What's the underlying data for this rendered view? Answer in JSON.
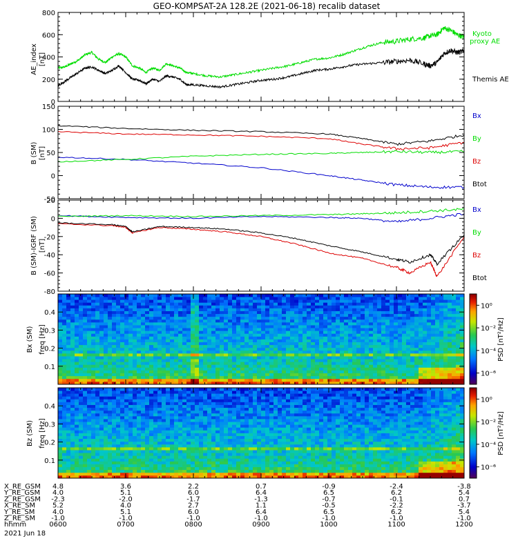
{
  "title": "GEO-KOMPSAT-2A 128.2E (2021-06-18) recalib dataset",
  "colors": {
    "blue": "#0000cc",
    "green": "#00dd00",
    "red": "#dd0000",
    "black": "#000000"
  },
  "chart_data": [
    {
      "id": "ae",
      "type": "line",
      "ylabel": "AE_index",
      "yunit": "[nT]",
      "ylim": [
        0,
        800
      ],
      "yticks": [
        0,
        200,
        400,
        600,
        800
      ],
      "series": [
        {
          "name": "Kyoto proxy AE",
          "label_line1": "Kyoto",
          "label_line2": "proxy AE",
          "color": "#00dd00",
          "t": [
            6.0,
            6.1,
            6.2,
            6.3,
            6.4,
            6.5,
            6.6,
            6.7,
            6.8,
            6.9,
            7.0,
            7.1,
            7.2,
            7.3,
            7.4,
            7.5,
            7.6,
            7.7,
            7.8,
            7.9,
            8.0,
            8.2,
            8.4,
            8.6,
            8.8,
            9.0,
            9.2,
            9.4,
            9.6,
            9.8,
            10.0,
            10.2,
            10.4,
            10.6,
            10.8,
            11.0,
            11.2,
            11.4,
            11.5,
            11.6,
            11.7,
            11.8,
            11.9,
            12.0
          ],
          "v": [
            300,
            310,
            340,
            370,
            420,
            440,
            380,
            350,
            400,
            430,
            400,
            320,
            300,
            260,
            300,
            280,
            340,
            320,
            300,
            260,
            250,
            230,
            220,
            240,
            260,
            280,
            300,
            320,
            350,
            380,
            390,
            420,
            460,
            500,
            530,
            540,
            560,
            570,
            590,
            600,
            660,
            640,
            600,
            580
          ]
        },
        {
          "name": "Themis AE",
          "color": "#000000",
          "t": [
            6.0,
            6.1,
            6.2,
            6.3,
            6.4,
            6.5,
            6.6,
            6.7,
            6.8,
            6.9,
            7.0,
            7.1,
            7.2,
            7.3,
            7.4,
            7.5,
            7.6,
            7.7,
            7.8,
            7.9,
            8.0,
            8.2,
            8.4,
            8.6,
            8.8,
            9.0,
            9.2,
            9.4,
            9.6,
            9.8,
            10.0,
            10.2,
            10.4,
            10.6,
            10.8,
            11.0,
            11.2,
            11.4,
            11.5,
            11.6,
            11.7,
            11.8,
            11.9,
            12.0
          ],
          "v": [
            140,
            180,
            220,
            260,
            300,
            310,
            280,
            250,
            280,
            320,
            260,
            200,
            190,
            160,
            200,
            180,
            230,
            220,
            200,
            150,
            150,
            140,
            130,
            150,
            170,
            190,
            200,
            220,
            250,
            280,
            290,
            310,
            330,
            340,
            350,
            360,
            370,
            340,
            320,
            350,
            430,
            460,
            440,
            450
          ]
        }
      ]
    },
    {
      "id": "b",
      "type": "line",
      "ylabel": "B (SM)",
      "yunit": "[nT]",
      "ylim": [
        -50,
        150
      ],
      "yticks": [
        -50,
        0,
        50,
        100,
        150
      ],
      "series": [
        {
          "name": "Bx",
          "color": "#0000cc",
          "t": [
            6,
            7,
            8,
            9,
            10,
            10.5,
            11,
            11.5,
            12
          ],
          "v": [
            40,
            35,
            27,
            17,
            0,
            -10,
            -20,
            -25,
            -25
          ]
        },
        {
          "name": "By",
          "color": "#00dd00",
          "t": [
            6,
            7,
            8,
            9,
            10,
            10.5,
            11,
            11.5,
            12
          ],
          "v": [
            30,
            35,
            42,
            46,
            48,
            50,
            52,
            50,
            52
          ]
        },
        {
          "name": "Bz",
          "color": "#dd0000",
          "t": [
            6,
            7,
            8,
            9,
            10,
            10.5,
            11,
            11.5,
            12
          ],
          "v": [
            95,
            90,
            88,
            85,
            80,
            68,
            58,
            60,
            72
          ]
        },
        {
          "name": "Btot",
          "color": "#000000",
          "t": [
            6,
            7,
            8,
            9,
            10,
            10.5,
            11,
            11.5,
            12
          ],
          "v": [
            108,
            102,
            98,
            95,
            90,
            80,
            68,
            75,
            88
          ]
        }
      ]
    },
    {
      "id": "db",
      "type": "line",
      "ylabel": "B (SM)-IGRF (SM)",
      "yunit": "[nT]",
      "ylim": [
        -80,
        20
      ],
      "yticks": [
        -80,
        -60,
        -40,
        -20,
        0,
        20
      ],
      "series": [
        {
          "name": "Bx",
          "color": "#0000cc",
          "t": [
            6,
            7,
            8,
            9,
            10,
            10.5,
            11,
            11.5,
            12
          ],
          "v": [
            3,
            1,
            0,
            2,
            1,
            0,
            -4,
            0,
            5
          ]
        },
        {
          "name": "By",
          "color": "#00dd00",
          "t": [
            6,
            7,
            8,
            9,
            10,
            10.5,
            11,
            11.5,
            12
          ],
          "v": [
            2,
            3,
            2,
            3,
            4,
            5,
            6,
            8,
            10
          ]
        },
        {
          "name": "Bz",
          "color": "#dd0000",
          "t": [
            6,
            6.8,
            7,
            7.1,
            7.5,
            8,
            8.5,
            9,
            9.5,
            10,
            10.5,
            11,
            11.2,
            11.5,
            11.6,
            12
          ],
          "v": [
            -6,
            -8,
            -10,
            -16,
            -10,
            -12,
            -15,
            -20,
            -28,
            -38,
            -44,
            -54,
            -60,
            -48,
            -64,
            -20
          ]
        },
        {
          "name": "Btot",
          "color": "#000000",
          "t": [
            6,
            6.8,
            7,
            7.1,
            7.5,
            8,
            8.5,
            9,
            9.5,
            10,
            10.5,
            11,
            11.2,
            11.5,
            11.6,
            12
          ],
          "v": [
            -5,
            -7,
            -9,
            -15,
            -9,
            -10,
            -12,
            -16,
            -22,
            -30,
            -37,
            -45,
            -48,
            -40,
            -50,
            -18
          ]
        }
      ]
    },
    {
      "id": "specx",
      "type": "heatmap",
      "ylabel": "Bx (SM)",
      "yunit_label": "freq [Hz]",
      "yticks": [
        0.1,
        0.2,
        0.3,
        0.4
      ],
      "ylim": [
        0,
        0.5
      ],
      "colorbar_label": "PSD [nT²/Hz]",
      "colorbar_ticks": [
        "10⁰",
        "10⁻²",
        "10⁻⁴",
        "10⁻⁶"
      ],
      "colorbar_exponents": [
        0,
        -2,
        -4,
        -6
      ],
      "colorbar_range": [
        -7,
        1
      ]
    },
    {
      "id": "specz",
      "type": "heatmap",
      "ylabel": "Bz (SM)",
      "yunit_label": "freq [Hz]",
      "yticks": [
        0.1,
        0.2,
        0.3,
        0.4
      ],
      "ylim": [
        0,
        0.5
      ],
      "colorbar_label": "PSD [nT²/Hz]",
      "colorbar_ticks": [
        "10⁰",
        "10⁻²",
        "10⁻⁴",
        "10⁻⁶"
      ],
      "colorbar_exponents": [
        0,
        -2,
        -4,
        -6
      ],
      "colorbar_range": [
        -7,
        1
      ]
    }
  ],
  "time_axis": {
    "xlim": [
      6,
      12
    ],
    "ticks": [
      6,
      7,
      8,
      9,
      10,
      11,
      12
    ],
    "rows": [
      {
        "label": "X_RE_GSM",
        "values": [
          "4.8",
          "3.6",
          "2.2",
          "0.7",
          "-0.9",
          "-2.4",
          "-3.8"
        ]
      },
      {
        "label": "Y_RE_GSM",
        "values": [
          "4.0",
          "5.1",
          "6.0",
          "6.4",
          "6.5",
          "6.2",
          "5.4"
        ]
      },
      {
        "label": "Z_RE_GSM",
        "values": [
          "-2.3",
          "-2.0",
          "-1.7",
          "-1.3",
          "-0.7",
          "-0.1",
          "0.7"
        ]
      },
      {
        "label": "X_RE_SM",
        "values": [
          "5.2",
          "4.0",
          "2.7",
          "1.1",
          "-0.5",
          "-2.2",
          "-3.7"
        ]
      },
      {
        "label": "Y_RE_SM",
        "values": [
          "4.0",
          "5.1",
          "6.0",
          "6.4",
          "6.5",
          "6.2",
          "5.4"
        ]
      },
      {
        "label": "Z_RE_SM",
        "values": [
          "-1.0",
          "-1.0",
          "-1.0",
          "-1.0",
          "-1.0",
          "-1.0",
          "-1.0"
        ]
      },
      {
        "label": "hhmm",
        "values": [
          "0600",
          "0700",
          "0800",
          "0900",
          "1000",
          "1100",
          "1200"
        ]
      }
    ],
    "date": "2021 Jun 18"
  }
}
